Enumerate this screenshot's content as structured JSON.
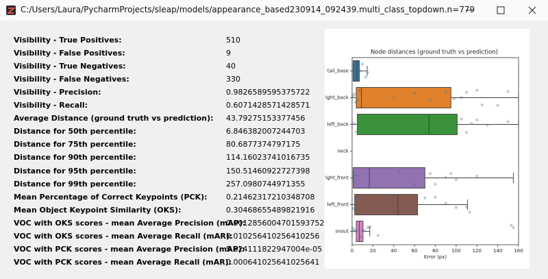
{
  "window_title": "C:/Users/Laura/PycharmProjects/sleap/models/appearance_based230914_092439.multi_class_topdown.n=779",
  "metrics": [
    {
      "label": "Visibility - True Positives:",
      "value": "510"
    },
    {
      "label": "Visibility - False Positives:",
      "value": "9"
    },
    {
      "label": "Visibility - True Negatives:",
      "value": "40"
    },
    {
      "label": "Visibility - False Negatives:",
      "value": "330"
    },
    {
      "label": "Visibility - Precision:",
      "value": "0.9826589595375722"
    },
    {
      "label": "Visibility - Recall:",
      "value": "0.6071428571428571"
    },
    {
      "label": "Average Distance (ground truth vs prediction):",
      "value": "43.79275153377456"
    },
    {
      "label": "Distance for 50th percentile:",
      "value": "6.846382007244703"
    },
    {
      "label": "Distance for 75th percentile:",
      "value": "80.6877374797175"
    },
    {
      "label": "Distance for 90th percentile:",
      "value": "114.16023741016735"
    },
    {
      "label": "Distance for 95th percentile:",
      "value": "150.51460922727398"
    },
    {
      "label": "Distance for 99th percentile:",
      "value": "257.0980744971355"
    },
    {
      "label": "Mean Percentage of Correct Keypoints (PCK):",
      "value": "0.21462317210348708"
    },
    {
      "label": "Mean Object Keypoint Similarity (OKS):",
      "value": "0.30468655489821916"
    },
    {
      "label": "VOC with OKS scores - mean Average Precision (mAP):",
      "value": "0.0012856004701593752"
    },
    {
      "label": "VOC with OKS scores - mean Average Recall (mAR):",
      "value": "0.010256410256410256"
    },
    {
      "label": "VOC with PCK scores - mean Average Precision (mAP):",
      "value": "5.824111822947004e-05"
    },
    {
      "label": "VOC with PCK scores - mean Average Recall (mAR):",
      "value": "0.000641025641025641"
    }
  ],
  "chart_data": {
    "type": "box",
    "title": "Node distances (ground truth vs prediction)",
    "xlabel": "Error (px)",
    "categories": [
      "tail_base",
      "right_back",
      "left_back",
      "neck",
      "right_front",
      "left_front",
      "snout"
    ],
    "colors": [
      "#3274a1",
      "#e1812c",
      "#3a923a",
      "#c03d3e",
      "#9372b2",
      "#845b53",
      "#d684bd"
    ],
    "whisker_low": [
      0,
      0,
      0,
      null,
      0,
      0,
      0
    ],
    "q1": [
      1,
      4,
      5,
      null,
      1,
      2.5,
      4
    ],
    "median": [
      4.5,
      9,
      74,
      null,
      16.5,
      44,
      7
    ],
    "q3": [
      7,
      95,
      101,
      null,
      70,
      63,
      10.5
    ],
    "whisker_high": [
      14.5,
      160,
      160,
      null,
      155,
      111,
      17
    ],
    "points": [
      [
        1,
        2,
        3,
        5,
        6,
        8,
        10,
        13,
        15
      ],
      [
        1,
        2,
        3,
        5,
        8,
        40,
        60,
        75,
        90,
        98,
        105,
        110,
        120,
        125,
        140,
        150
      ],
      [
        2,
        4,
        10,
        30,
        50,
        80,
        95,
        105,
        110,
        115,
        120,
        130,
        150
      ],
      [],
      [
        1,
        2,
        3,
        5,
        45,
        60,
        75,
        80,
        90,
        95,
        100,
        120
      ],
      [
        1,
        3,
        5,
        10,
        60,
        70,
        80,
        90,
        100,
        110,
        113
      ],
      [
        1,
        2,
        3,
        5,
        8,
        10,
        12,
        15,
        17,
        25,
        153,
        155
      ]
    ],
    "points_color": "#4a6f8f",
    "xlim": [
      0,
      160
    ],
    "xticks": [
      0,
      20,
      40,
      60,
      80,
      100,
      120,
      140,
      160
    ]
  }
}
